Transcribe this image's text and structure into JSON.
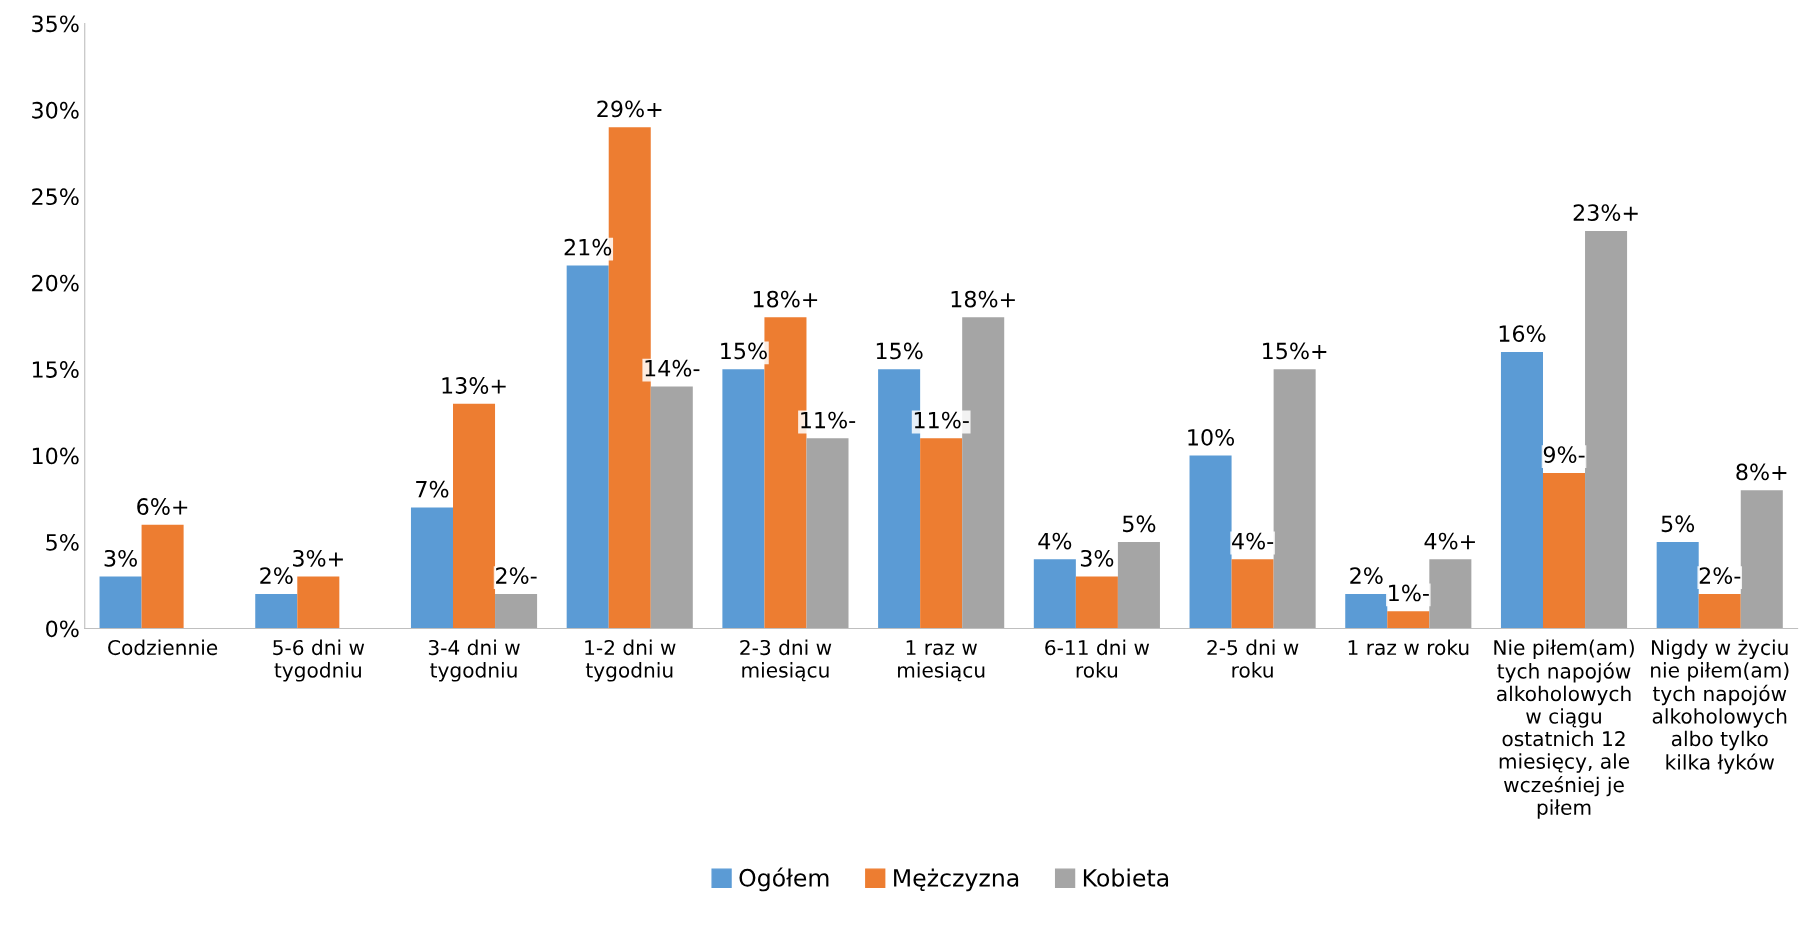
{
  "chart_data": {
    "type": "bar",
    "categories": [
      "Codziennie",
      "5-6 dni w tygodniu",
      "3-4 dni w tygodniu",
      "1-2 dni w tygodniu",
      "2-3 dni w miesiącu",
      "1 raz w miesiącu",
      "6-11 dni w roku",
      "2-5 dni w roku",
      "1 raz w roku",
      "Nie piłem(am) tych napojów alkoholowych w ciągu ostatnich 12 miesięcy, ale wcześniej je piłem",
      "Nigdy w życiu nie piłem(am) tych napojów alkoholowych albo tylko kilka łyków"
    ],
    "series": [
      {
        "name": "Ogółem",
        "color": "#5b9bd5",
        "values": [
          3,
          2,
          7,
          21,
          15,
          15,
          4,
          10,
          2,
          16,
          5
        ],
        "value_labels": [
          "3%",
          "2%",
          "7%",
          "21%",
          "15%",
          "15%",
          "4%",
          "10%",
          "2%",
          "16%",
          "5%"
        ]
      },
      {
        "name": "Mężczyzna",
        "color": "#ed7d31",
        "values": [
          6,
          3,
          13,
          29,
          18,
          11,
          3,
          4,
          1,
          9,
          2
        ],
        "value_labels": [
          "6%+",
          "3%+",
          "13%+",
          "29%+",
          "18%+",
          "11%-",
          "3%",
          "4%-",
          "1%-",
          "9%-",
          "2%-"
        ]
      },
      {
        "name": "Kobieta",
        "color": "#a5a5a5",
        "values": [
          null,
          null,
          2,
          14,
          11,
          18,
          5,
          15,
          4,
          23,
          8
        ],
        "value_labels": [
          null,
          null,
          "2%-",
          "14%-",
          "11%-",
          "18%+",
          "5%",
          "15%+",
          "4%+",
          "23%+",
          "8%+"
        ]
      }
    ],
    "ylim": [
      0,
      35
    ],
    "yticks": [
      {
        "value": 0,
        "label": "0%"
      },
      {
        "value": 5,
        "label": "5%"
      },
      {
        "value": 10,
        "label": "10%"
      },
      {
        "value": 15,
        "label": "15%"
      },
      {
        "value": 20,
        "label": "20%"
      },
      {
        "value": 25,
        "label": "25%"
      },
      {
        "value": 30,
        "label": "30%"
      },
      {
        "value": 35,
        "label": "35%"
      }
    ],
    "grid": false,
    "legend": "bottom"
  }
}
